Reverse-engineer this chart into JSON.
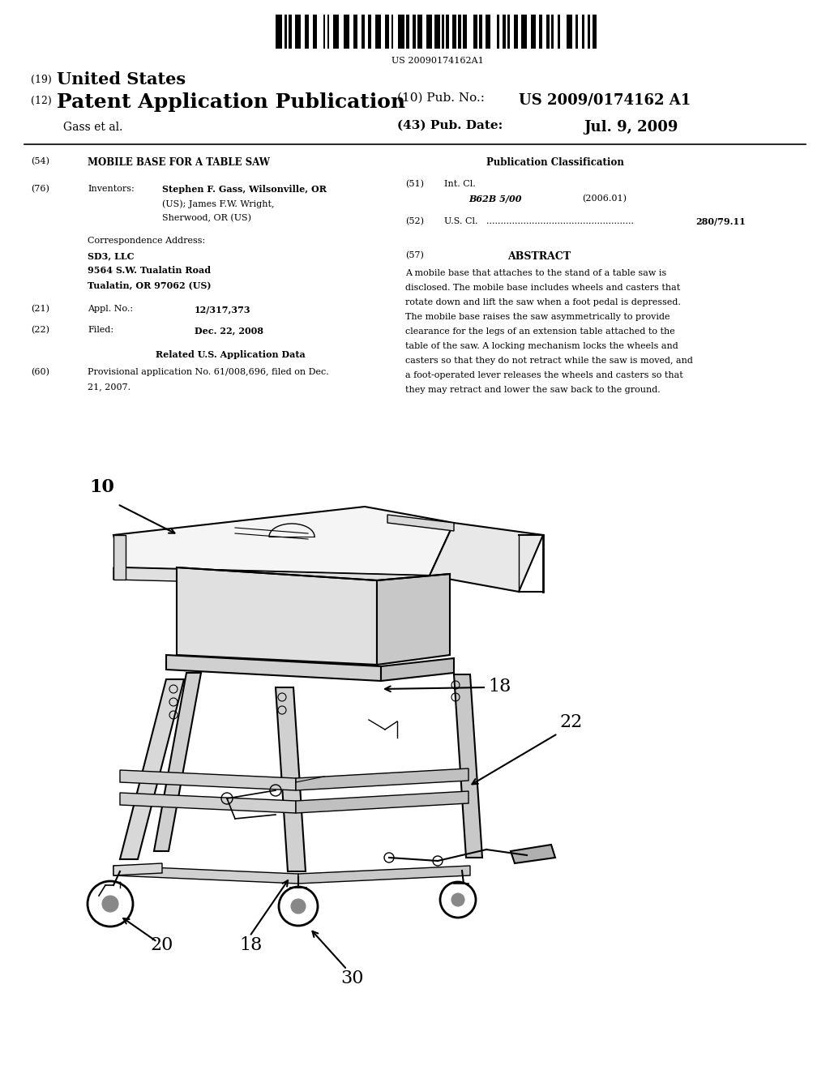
{
  "background_color": "#ffffff",
  "barcode_text": "US 20090174162A1",
  "header_left_line1_small": "(19)",
  "header_left_line1_large": "United States",
  "header_left_line2_small": "(12)",
  "header_left_line2_large": "Patent Application Publication",
  "header_left_line3": "Gass et al.",
  "header_right_pubno_label": "(10) Pub. No.:",
  "header_right_pubno_value": "US 2009/0174162 A1",
  "header_right_date_label": "(43) Pub. Date:",
  "header_right_date_value": "Jul. 9, 2009",
  "field54_title": "MOBILE BASE FOR A TABLE SAW",
  "field76_inventors_line1": "Stephen F. Gass, Wilsonville, OR",
  "field76_inventors_line2": "(US); James F.W. Wright,",
  "field76_inventors_line3": "Sherwood, OR (US)",
  "corr_line1": "Correspondence Address:",
  "corr_line2": "SD3, LLC",
  "corr_line3": "9564 S.W. Tualatin Road",
  "corr_line4": "Tualatin, OR 97062 (US)",
  "field21_value": "12/317,373",
  "field22_value": "Dec. 22, 2008",
  "field60_line1": "Provisional application No. 61/008,696, filed on Dec.",
  "field60_line2": "21, 2007.",
  "pub_class_header": "Publication Classification",
  "field51_class": "B62B 5/00",
  "field51_year": "(2006.01)",
  "field52_value": "280/79.11",
  "abstract_text_lines": [
    "A mobile base that attaches to the stand of a table saw is",
    "disclosed. The mobile base includes wheels and casters that",
    "rotate down and lift the saw when a foot pedal is depressed.",
    "The mobile base raises the saw asymmetrically to provide",
    "clearance for the legs of an extension table attached to the",
    "table of the saw. A locking mechanism locks the wheels and",
    "casters so that they do not retract while the saw is moved, and",
    "a foot-operated lever releases the wheels and casters so that",
    "they may retract and lower the saw back to the ground."
  ]
}
